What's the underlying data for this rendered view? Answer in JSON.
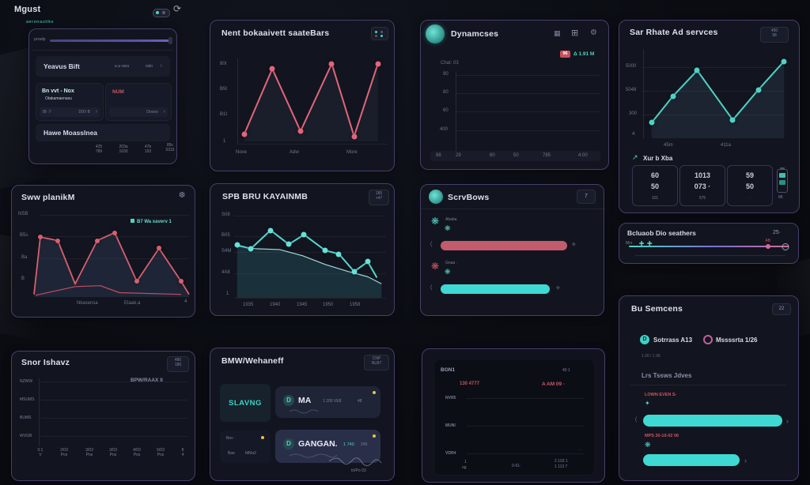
{
  "page": {
    "title": "Mgust",
    "subtitle": "aeronautiks",
    "refresh_icon": "⟳"
  },
  "cardA": {
    "scroll_label": "prradp",
    "row1": {
      "title": "Yeavus Bift",
      "meta1": "a.a vara",
      "meta2": "valo",
      "chevron": "›"
    },
    "sub1": {
      "title": "Bn vvt - Nox",
      "subtitle": "Otakamaenasu",
      "foot_left": "IB -7",
      "foot_right": "D0V B",
      "chevron": "›"
    },
    "sub2": {
      "title": "NUM",
      "foot_right": "Doooo",
      "chevron": "›"
    },
    "row3": {
      "title": "Hawe Moasslnea"
    },
    "stats": [
      {
        "l1": "425",
        "l2": "789"
      },
      {
        "l1": "203a",
        "l2": "1630"
      },
      {
        "l1": "47b",
        "l2": "193"
      },
      {
        "l1": "85c",
        "l2": "5315"
      }
    ]
  },
  "cardB": {
    "title": "Nent bokaaivett saateBars",
    "yticks": [
      "80t",
      "B5t",
      "B1t",
      "1"
    ],
    "xticks": [
      "Nove",
      "Adw",
      "More"
    ]
  },
  "cardC": {
    "title": "Dynamcses",
    "badge": "96",
    "delta": "Δ 1.91 M",
    "label": "Chat: 03",
    "yticks": [
      "90",
      "80",
      "60",
      "400"
    ],
    "corner": "88",
    "xticks": [
      "29",
      "60",
      "50",
      "785",
      "4:00"
    ]
  },
  "cardD": {
    "title": "Sar Rhate Ad servces",
    "badge_l1": "450",
    "badge_l2": "98",
    "yticks": [
      "5000",
      "5048",
      "300",
      "4"
    ],
    "xticks": [
      "45m",
      "411a"
    ],
    "stats_label": "Xur b Xba",
    "boxes": [
      {
        "l1": "60",
        "l2": "50",
        "l3": "101"
      },
      {
        "l1": "1013",
        "l2": "073 ·",
        "l3": "575"
      },
      {
        "l1": "59",
        "l2": "50",
        "l3": "·"
      }
    ],
    "battery_label": "88"
  },
  "cardE": {
    "title": "SPB BRU KAYAINMB",
    "badge_l1": "185",
    "badge_l2": "+47",
    "yticks": [
      "S08",
      "B05",
      "S4M",
      "4A8",
      "1"
    ],
    "xticks": [
      "1935",
      "1940",
      "1945",
      "1950",
      "1958"
    ]
  },
  "cardF": {
    "title": "ScrvBows",
    "badge": "7",
    "group1_label": "Ababa",
    "group2_label": "Gnaa ·"
  },
  "cardG": {
    "title": "Bcluaob Dio seathers",
    "value": "25·",
    "left_label": "Mrs",
    "right_label": "AB",
    "handles": {
      "h1": 8,
      "h2": 13,
      "h3": 87,
      "h4": 98
    }
  },
  "cardH": {
    "title": "Bu Semcens",
    "badge": "22",
    "legend1": "Sotrrass A13",
    "legend2": "Mssssrta 1/26",
    "faint": "1.90 / 1.98",
    "subhead": "Lrs Tssws Jdves",
    "bar1_label": "LOWN EVEN S-",
    "bar2_label": "MPS 20-10-02 06"
  },
  "cardI": {
    "title": "Sww planikM",
    "legend": "B7 Wa xaverv 1",
    "yticks": [
      "NSB",
      "B5s",
      "Ba",
      "B"
    ],
    "xticks": [
      "Nkasensa",
      "Etaak.a",
      "4"
    ]
  },
  "cardJ": {
    "title": "Snor Ishavz",
    "badge_l1": "480",
    "badge_l2": "186",
    "note": "BPW/RAAX II",
    "yticks": [
      "NZWW",
      "MSUMS",
      "BUMS",
      "WVGB"
    ],
    "xticks": [
      {
        "t": "0:1",
        "b": "V"
      },
      {
        "t": "2/03",
        "b": "Pos"
      },
      {
        "t": "3/03",
        "b": "Pos"
      },
      {
        "t": "3/03",
        "b": "Pos"
      },
      {
        "t": "4/03",
        "b": "Pos"
      },
      {
        "t": "5/03",
        "b": "Pos"
      },
      {
        "t": "8",
        "b": "4"
      }
    ]
  },
  "cardK": {
    "title": "BMW/Wehaneff",
    "badge_l1": "CNP",
    "badge_l2": "NLB7",
    "btn1_label": "SLAVNG",
    "btn2": {
      "icon": "D",
      "label": "MA",
      "meta": "1 200 VE8",
      "meta2": "48"
    },
    "btn3": {
      "top": "Bev ·",
      "bottom1": "Bae",
      "bottom2": "MMa2"
    },
    "btn4": {
      "icon": "D",
      "label": "GANGAN.",
      "meta": "1 740",
      "meta2": "249"
    },
    "footer": "tri/Po 03"
  },
  "cardL": {
    "title": "BGN1",
    "corner": "40 1",
    "red_left": "130 4777",
    "red_right": "A AM 09 ·",
    "rows": [
      "NVR5",
      "MUNI",
      "VDR4"
    ],
    "xticks": {
      "x1t": "1",
      "x1b": "og",
      "x2": "0-61·",
      "x3t": "2 103 1",
      "x3b": "1 113 7"
    },
    "dots": "· ·"
  },
  "colors": {
    "teal": "#4ed2c6",
    "pink": "#e2657b",
    "purple_track": "#5a53a5",
    "bar_red": "#c25b6b",
    "bar_teal": "#3fd9d4"
  },
  "charts": {
    "zigzag": {
      "series": [
        {
          "points": [
            [
              4,
              92
            ],
            [
              23,
              15
            ],
            [
              42,
              88
            ],
            [
              63,
              9
            ],
            [
              78,
              94
            ],
            [
              94,
              9
            ]
          ],
          "fill": "rgba(120,140,180,0.08)",
          "stroke": "#e2657b",
          "width": 2,
          "dots": true,
          "dotColor": "#e2657b",
          "dotSize": 7
        }
      ]
    },
    "tealup": {
      "series": [
        {
          "points": [
            [
              6,
              83
            ],
            [
              21,
              54
            ],
            [
              38,
              26
            ],
            [
              63,
              80
            ],
            [
              81,
              47
            ],
            [
              99,
              16
            ]
          ],
          "fill": "rgba(90,130,160,0.15)",
          "stroke": "#4ed2c6",
          "width": 2,
          "dots": true,
          "dotColor": "#4ed2c6",
          "dotSize": 7
        }
      ]
    },
    "redmountain": {
      "series": [
        {
          "points": [
            [
              1,
              97
            ],
            [
              5,
              31
            ],
            [
              16,
              35
            ],
            [
              27,
              85
            ],
            [
              41,
              35
            ],
            [
              52,
              26
            ],
            [
              66,
              82
            ],
            [
              80,
              44
            ],
            [
              94,
              82
            ],
            [
              99,
              97
            ]
          ],
          "fill": "rgba(55,70,100,0.35)",
          "stroke": "#d95f6e",
          "width": 1.8,
          "dots": true,
          "dotSkip": [
            0,
            3,
            9
          ],
          "dotColor": "#d95f6e",
          "dotSize": 6
        },
        {
          "points": [
            [
              2,
              98
            ],
            [
              27,
              88
            ],
            [
              43,
              87
            ],
            [
              55,
              95
            ],
            [
              94,
              97
            ]
          ],
          "stroke": "#c04f60",
          "width": 1.2
        }
      ]
    },
    "tealdown": {
      "series": [
        {
          "points": [
            [
              2,
              41
            ],
            [
              14,
              44
            ],
            [
              30,
              45
            ],
            [
              45,
              52
            ],
            [
              60,
              62
            ],
            [
              75,
              70
            ],
            [
              88,
              76
            ],
            [
              97,
              84
            ]
          ],
          "fill": "rgba(60,160,170,0.20)",
          "stroke": "#9fd8da",
          "width": 1.2
        },
        {
          "points": [
            [
              2,
              40
            ],
            [
              11,
              44
            ],
            [
              24,
              23
            ],
            [
              36,
              39
            ],
            [
              46,
              28
            ],
            [
              60,
              46
            ],
            [
              69,
              50
            ],
            [
              79,
              70
            ],
            [
              88,
              59
            ],
            [
              94,
              77
            ]
          ],
          "stroke": "#56d6cf",
          "width": 2,
          "dots": true,
          "dotSkip": [
            9
          ],
          "dotColor": "#67e0d8",
          "dotSize": 7
        }
      ]
    }
  }
}
